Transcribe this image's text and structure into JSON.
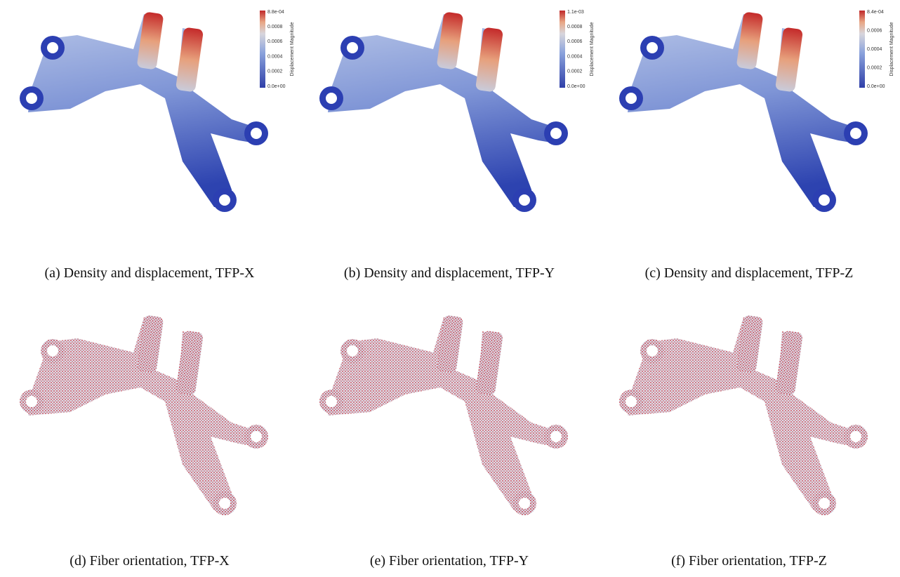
{
  "panels": [
    {
      "caption": "(a) Density and displacement, TFP-X",
      "colorbar": {
        "title": "Displacement Magnitude",
        "ticks": [
          "8.8e-04",
          "0.0008",
          "0.0006",
          "0.0004",
          "0.0002",
          "0.0e+00"
        ]
      }
    },
    {
      "caption": "(b) Density and displacement, TFP-Y",
      "colorbar": {
        "title": "Displacement Magnitude",
        "ticks": [
          "1.1e-03",
          "0.0008",
          "0.0006",
          "0.0004",
          "0.0002",
          "0.0e+00"
        ]
      }
    },
    {
      "caption": "(c) Density and displacement, TFP-Z",
      "colorbar": {
        "title": "Displacement Magnitude",
        "ticks": [
          "8.4e-04",
          "0.0006",
          "0.0004",
          "0.0002",
          "0.0e+00"
        ]
      }
    },
    {
      "caption": "(d) Fiber orientation, TFP-X"
    },
    {
      "caption": "(e) Fiber orientation, TFP-Y"
    },
    {
      "caption": "(f) Fiber orientation, TFP-Z"
    }
  ]
}
